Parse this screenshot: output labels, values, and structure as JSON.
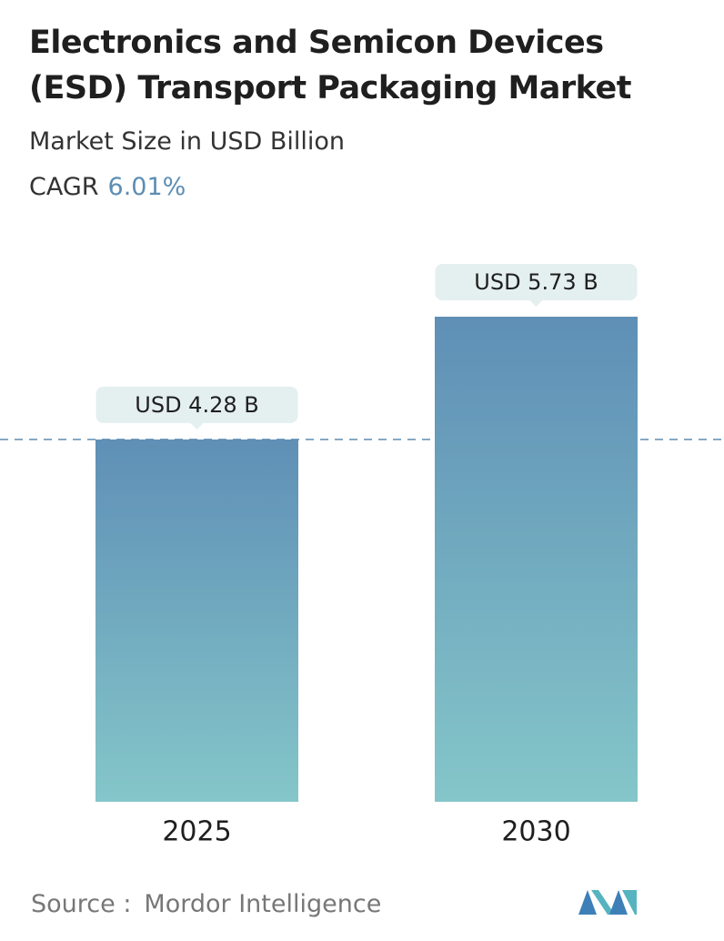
{
  "chart_data": {
    "type": "bar",
    "title": "Electronics and Semicon Devices (ESD) Transport Packaging Market",
    "subtitle": "Market Size in USD Billion",
    "cagr_label": "CAGR",
    "cagr_value": "6.01%",
    "categories": [
      "2025",
      "2030"
    ],
    "values": [
      4.28,
      5.73
    ],
    "value_labels": [
      "USD 4.28 B",
      "USD 5.73 B"
    ],
    "source_label": "Source :",
    "source": "Mordor Intelligence"
  }
}
